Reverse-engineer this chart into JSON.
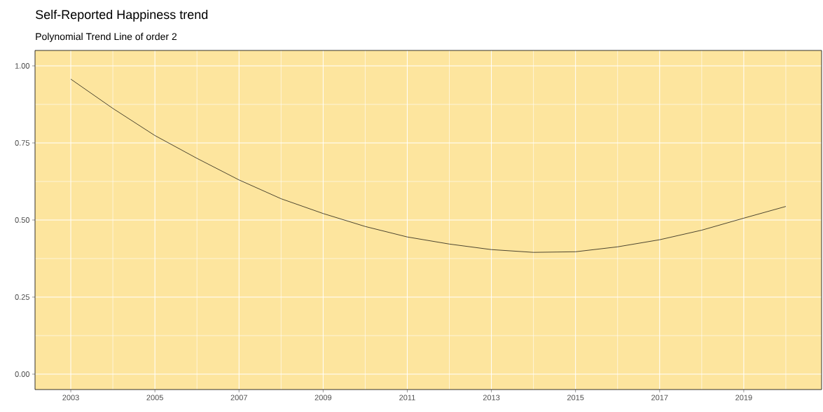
{
  "chart_data": {
    "type": "line",
    "title": "Self-Reported Happiness trend",
    "subtitle": "Polynomial Trend Line of order 2",
    "x": [
      2003,
      2004,
      2005,
      2006,
      2007,
      2008,
      2009,
      2010,
      2011,
      2012,
      2013,
      2014,
      2015,
      2016,
      2017,
      2018,
      2019,
      2020
    ],
    "values": [
      0.957,
      0.862,
      0.774,
      0.7,
      0.63,
      0.569,
      0.521,
      0.479,
      0.445,
      0.422,
      0.404,
      0.395,
      0.397,
      0.413,
      0.436,
      0.467,
      0.506,
      0.544
    ],
    "color": "#000000",
    "xlim": [
      2002.15,
      2020.85
    ],
    "ylim": [
      -0.05,
      1.05
    ],
    "xticks": [
      2003,
      {
        "value": 2004,
        "label": null
      },
      2005,
      {
        "value": 2006,
        "label": null
      },
      2007,
      {
        "value": 2008,
        "label": null
      },
      2009,
      {
        "value": 2010,
        "label": null
      },
      2011,
      {
        "value": 2012,
        "label": null
      },
      2013,
      {
        "value": 2014,
        "label": null
      },
      2015,
      {
        "value": 2016,
        "label": null
      },
      2017,
      {
        "value": 2018,
        "label": null
      },
      2019,
      {
        "value": 2020,
        "label": null
      }
    ],
    "yticks": [
      {
        "value": 0,
        "label": "0.00"
      },
      {
        "value": 0.125,
        "label": null
      },
      {
        "value": 0.25,
        "label": "0.25"
      },
      {
        "value": 0.375,
        "label": null
      },
      {
        "value": 0.5,
        "label": "0.50"
      },
      {
        "value": 0.625,
        "label": null
      },
      {
        "value": 0.75,
        "label": "0.75"
      },
      {
        "value": 0.875,
        "label": null
      },
      {
        "value": 1,
        "label": "1.00"
      }
    ],
    "grid": true,
    "marker": "none",
    "line_style": "solid"
  }
}
